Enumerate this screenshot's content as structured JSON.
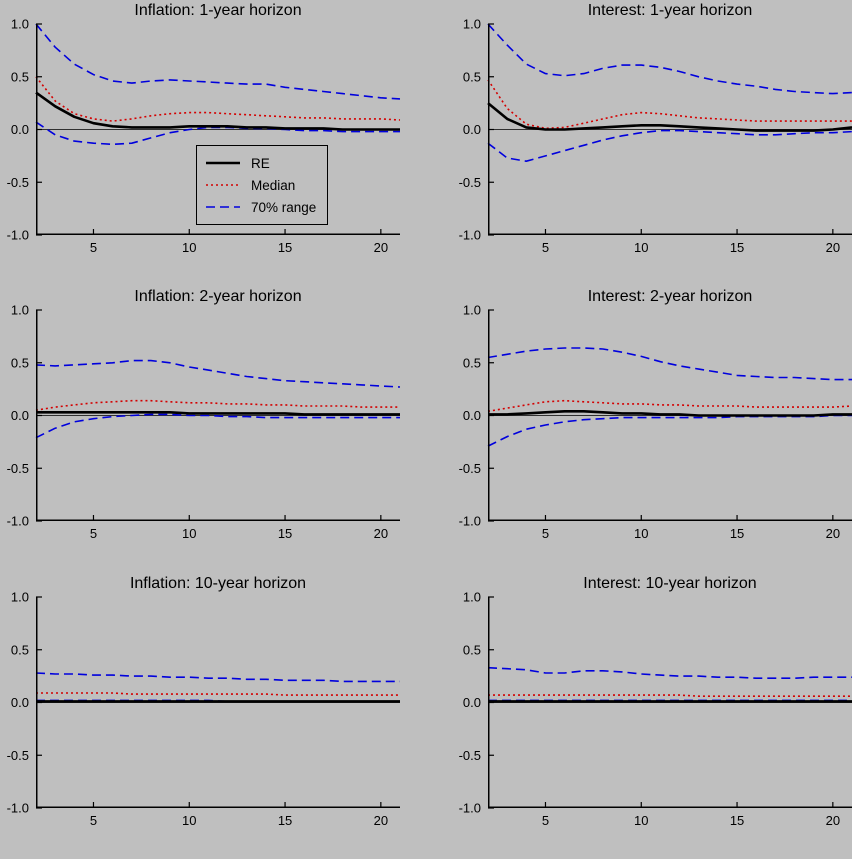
{
  "figure": {
    "background": "#bfbfbf",
    "axis_color": "#000000"
  },
  "legend": {
    "items": [
      {
        "label": "RE"
      },
      {
        "label": "Median"
      },
      {
        "label": "70% range"
      }
    ]
  },
  "series_styles": {
    "re_color": "#000000",
    "median_color": "#d40000",
    "range_color": "#0000dd"
  },
  "axes": {
    "yticks": [
      1.0,
      0.5,
      0.0,
      -0.5,
      -1.0
    ],
    "ytick_labels": [
      "1.0",
      "0.5",
      "0.0",
      "-0.5",
      "-1.0"
    ],
    "xticks": [
      5,
      10,
      15,
      20
    ]
  },
  "chart_data": [
    {
      "type": "line",
      "title": "Inflation: 1-year horizon",
      "xlabel": "",
      "ylabel": "",
      "xlim": [
        2,
        21
      ],
      "ylim": [
        -1,
        1
      ],
      "x": [
        2,
        3,
        4,
        5,
        6,
        7,
        8,
        9,
        10,
        11,
        12,
        13,
        14,
        15,
        16,
        17,
        18,
        19,
        20,
        21
      ],
      "series": [
        {
          "name": "RE",
          "style": "re",
          "values": [
            0.35,
            0.22,
            0.12,
            0.06,
            0.03,
            0.02,
            0.02,
            0.02,
            0.03,
            0.03,
            0.03,
            0.02,
            0.02,
            0.01,
            0.01,
            0.01,
            0.0,
            0.0,
            0.0,
            0.0
          ]
        },
        {
          "name": "Median",
          "style": "median",
          "values": [
            0.5,
            0.27,
            0.15,
            0.1,
            0.08,
            0.1,
            0.13,
            0.15,
            0.16,
            0.16,
            0.15,
            0.14,
            0.13,
            0.12,
            0.11,
            0.11,
            0.1,
            0.1,
            0.1,
            0.09
          ]
        },
        {
          "name": "70% range upper",
          "style": "range",
          "values": [
            1.0,
            0.78,
            0.62,
            0.52,
            0.46,
            0.44,
            0.46,
            0.47,
            0.46,
            0.45,
            0.44,
            0.43,
            0.43,
            0.4,
            0.38,
            0.36,
            0.34,
            0.32,
            0.3,
            0.29
          ]
        },
        {
          "name": "70% range lower",
          "style": "range",
          "values": [
            0.07,
            -0.05,
            -0.11,
            -0.13,
            -0.14,
            -0.13,
            -0.08,
            -0.03,
            0.0,
            0.02,
            0.02,
            0.01,
            0.01,
            0.0,
            -0.01,
            -0.01,
            -0.02,
            -0.02,
            -0.02,
            -0.02
          ]
        }
      ]
    },
    {
      "type": "line",
      "title": "Interest: 1-year horizon",
      "xlabel": "",
      "ylabel": "",
      "xlim": [
        2,
        21
      ],
      "ylim": [
        -1,
        1
      ],
      "x": [
        2,
        3,
        4,
        5,
        6,
        7,
        8,
        9,
        10,
        11,
        12,
        13,
        14,
        15,
        16,
        17,
        18,
        19,
        20,
        21
      ],
      "series": [
        {
          "name": "RE",
          "style": "re",
          "values": [
            0.25,
            0.1,
            0.02,
            0.0,
            0.0,
            0.01,
            0.02,
            0.03,
            0.04,
            0.04,
            0.03,
            0.02,
            0.01,
            0.0,
            -0.01,
            -0.01,
            -0.01,
            -0.01,
            0.0,
            0.02
          ]
        },
        {
          "name": "Median",
          "style": "median",
          "values": [
            0.47,
            0.2,
            0.05,
            0.01,
            0.02,
            0.06,
            0.1,
            0.14,
            0.16,
            0.15,
            0.13,
            0.11,
            0.1,
            0.09,
            0.08,
            0.08,
            0.08,
            0.08,
            0.08,
            0.08
          ]
        },
        {
          "name": "70% range upper",
          "style": "range",
          "values": [
            1.0,
            0.8,
            0.62,
            0.53,
            0.51,
            0.53,
            0.58,
            0.61,
            0.61,
            0.59,
            0.55,
            0.5,
            0.46,
            0.43,
            0.41,
            0.38,
            0.36,
            0.35,
            0.34,
            0.35
          ]
        },
        {
          "name": "70% range lower",
          "style": "range",
          "values": [
            -0.13,
            -0.27,
            -0.3,
            -0.25,
            -0.2,
            -0.15,
            -0.1,
            -0.06,
            -0.03,
            -0.01,
            -0.01,
            -0.02,
            -0.03,
            -0.04,
            -0.05,
            -0.05,
            -0.04,
            -0.03,
            -0.03,
            -0.02
          ]
        }
      ]
    },
    {
      "type": "line",
      "title": "Inflation: 2-year horizon",
      "xlabel": "",
      "ylabel": "",
      "xlim": [
        2,
        21
      ],
      "ylim": [
        -1,
        1
      ],
      "x": [
        2,
        3,
        4,
        5,
        6,
        7,
        8,
        9,
        10,
        11,
        12,
        13,
        14,
        15,
        16,
        17,
        18,
        19,
        20,
        21
      ],
      "series": [
        {
          "name": "RE",
          "style": "re",
          "values": [
            0.03,
            0.03,
            0.03,
            0.03,
            0.03,
            0.03,
            0.03,
            0.03,
            0.02,
            0.02,
            0.02,
            0.02,
            0.02,
            0.02,
            0.01,
            0.01,
            0.01,
            0.01,
            0.01,
            0.01
          ]
        },
        {
          "name": "Median",
          "style": "median",
          "values": [
            0.05,
            0.08,
            0.1,
            0.12,
            0.13,
            0.14,
            0.14,
            0.13,
            0.12,
            0.12,
            0.11,
            0.11,
            0.1,
            0.1,
            0.09,
            0.09,
            0.09,
            0.08,
            0.08,
            0.08
          ]
        },
        {
          "name": "70% range upper",
          "style": "range",
          "values": [
            0.48,
            0.47,
            0.48,
            0.49,
            0.5,
            0.52,
            0.52,
            0.5,
            0.46,
            0.43,
            0.4,
            0.37,
            0.35,
            0.33,
            0.32,
            0.31,
            0.3,
            0.29,
            0.28,
            0.27
          ]
        },
        {
          "name": "70% range lower",
          "style": "range",
          "values": [
            -0.21,
            -0.12,
            -0.06,
            -0.03,
            -0.01,
            0.0,
            0.01,
            0.01,
            0.0,
            0.0,
            -0.01,
            -0.01,
            -0.02,
            -0.02,
            -0.02,
            -0.02,
            -0.02,
            -0.02,
            -0.02,
            -0.02
          ]
        }
      ]
    },
    {
      "type": "line",
      "title": "Interest: 2-year horizon",
      "xlabel": "",
      "ylabel": "",
      "xlim": [
        2,
        21
      ],
      "ylim": [
        -1,
        1
      ],
      "x": [
        2,
        3,
        4,
        5,
        6,
        7,
        8,
        9,
        10,
        11,
        12,
        13,
        14,
        15,
        16,
        17,
        18,
        19,
        20,
        21
      ],
      "series": [
        {
          "name": "RE",
          "style": "re",
          "values": [
            0.01,
            0.01,
            0.02,
            0.03,
            0.04,
            0.04,
            0.03,
            0.02,
            0.02,
            0.01,
            0.01,
            0.0,
            0.0,
            0.0,
            0.0,
            0.0,
            0.0,
            0.0,
            0.01,
            0.01
          ]
        },
        {
          "name": "Median",
          "style": "median",
          "values": [
            0.04,
            0.07,
            0.1,
            0.13,
            0.14,
            0.13,
            0.12,
            0.11,
            0.11,
            0.1,
            0.1,
            0.09,
            0.09,
            0.09,
            0.08,
            0.08,
            0.08,
            0.08,
            0.08,
            0.09
          ]
        },
        {
          "name": "70% range upper",
          "style": "range",
          "values": [
            0.55,
            0.58,
            0.61,
            0.63,
            0.64,
            0.64,
            0.63,
            0.6,
            0.56,
            0.51,
            0.47,
            0.44,
            0.41,
            0.38,
            0.37,
            0.36,
            0.36,
            0.35,
            0.34,
            0.34
          ]
        },
        {
          "name": "70% range lower",
          "style": "range",
          "values": [
            -0.29,
            -0.2,
            -0.13,
            -0.09,
            -0.06,
            -0.04,
            -0.03,
            -0.02,
            -0.02,
            -0.02,
            -0.02,
            -0.02,
            -0.02,
            -0.01,
            -0.01,
            -0.01,
            -0.01,
            -0.01,
            0.0,
            0.0
          ]
        }
      ]
    },
    {
      "type": "line",
      "title": "Inflation: 10-year horizon",
      "xlabel": "",
      "ylabel": "",
      "xlim": [
        2,
        21
      ],
      "ylim": [
        -1,
        1
      ],
      "x": [
        2,
        3,
        4,
        5,
        6,
        7,
        8,
        9,
        10,
        11,
        12,
        13,
        14,
        15,
        16,
        17,
        18,
        19,
        20,
        21
      ],
      "series": [
        {
          "name": "RE",
          "style": "re",
          "values": [
            0.01,
            0.01,
            0.01,
            0.01,
            0.01,
            0.01,
            0.01,
            0.01,
            0.01,
            0.01,
            0.01,
            0.01,
            0.01,
            0.01,
            0.01,
            0.01,
            0.01,
            0.01,
            0.01,
            0.01
          ]
        },
        {
          "name": "Median",
          "style": "median",
          "values": [
            0.09,
            0.09,
            0.09,
            0.09,
            0.09,
            0.08,
            0.08,
            0.08,
            0.08,
            0.08,
            0.08,
            0.08,
            0.08,
            0.07,
            0.07,
            0.07,
            0.07,
            0.07,
            0.07,
            0.07
          ]
        },
        {
          "name": "70% range upper",
          "style": "range",
          "values": [
            0.28,
            0.27,
            0.27,
            0.26,
            0.26,
            0.25,
            0.25,
            0.24,
            0.24,
            0.23,
            0.23,
            0.22,
            0.22,
            0.21,
            0.21,
            0.21,
            0.2,
            0.2,
            0.2,
            0.2
          ]
        },
        {
          "name": "70% range lower",
          "style": "range",
          "values": [
            0.02,
            0.02,
            0.02,
            0.02,
            0.02,
            0.02,
            0.02,
            0.02,
            0.02,
            0.02,
            0.01,
            0.01,
            0.01,
            0.01,
            0.01,
            0.01,
            0.01,
            0.01,
            0.01,
            0.01
          ]
        }
      ]
    },
    {
      "type": "line",
      "title": "Interest: 10-year horizon",
      "xlabel": "",
      "ylabel": "",
      "xlim": [
        2,
        21
      ],
      "ylim": [
        -1,
        1
      ],
      "x": [
        2,
        3,
        4,
        5,
        6,
        7,
        8,
        9,
        10,
        11,
        12,
        13,
        14,
        15,
        16,
        17,
        18,
        19,
        20,
        21
      ],
      "series": [
        {
          "name": "RE",
          "style": "re",
          "values": [
            0.01,
            0.01,
            0.01,
            0.01,
            0.01,
            0.01,
            0.01,
            0.01,
            0.01,
            0.01,
            0.01,
            0.01,
            0.01,
            0.01,
            0.01,
            0.01,
            0.01,
            0.01,
            0.01,
            0.01
          ]
        },
        {
          "name": "Median",
          "style": "median",
          "values": [
            0.07,
            0.07,
            0.07,
            0.07,
            0.07,
            0.07,
            0.07,
            0.07,
            0.07,
            0.07,
            0.07,
            0.06,
            0.06,
            0.06,
            0.06,
            0.06,
            0.06,
            0.06,
            0.06,
            0.06
          ]
        },
        {
          "name": "70% range upper",
          "style": "range",
          "values": [
            0.33,
            0.32,
            0.31,
            0.28,
            0.28,
            0.3,
            0.3,
            0.29,
            0.27,
            0.26,
            0.25,
            0.25,
            0.24,
            0.24,
            0.23,
            0.23,
            0.23,
            0.24,
            0.24,
            0.24
          ]
        },
        {
          "name": "70% range lower",
          "style": "range",
          "values": [
            0.02,
            0.02,
            0.02,
            0.02,
            0.02,
            0.02,
            0.02,
            0.02,
            0.02,
            0.02,
            0.02,
            0.02,
            0.02,
            0.02,
            0.02,
            0.02,
            0.02,
            0.02,
            0.02,
            0.02
          ]
        }
      ]
    }
  ]
}
